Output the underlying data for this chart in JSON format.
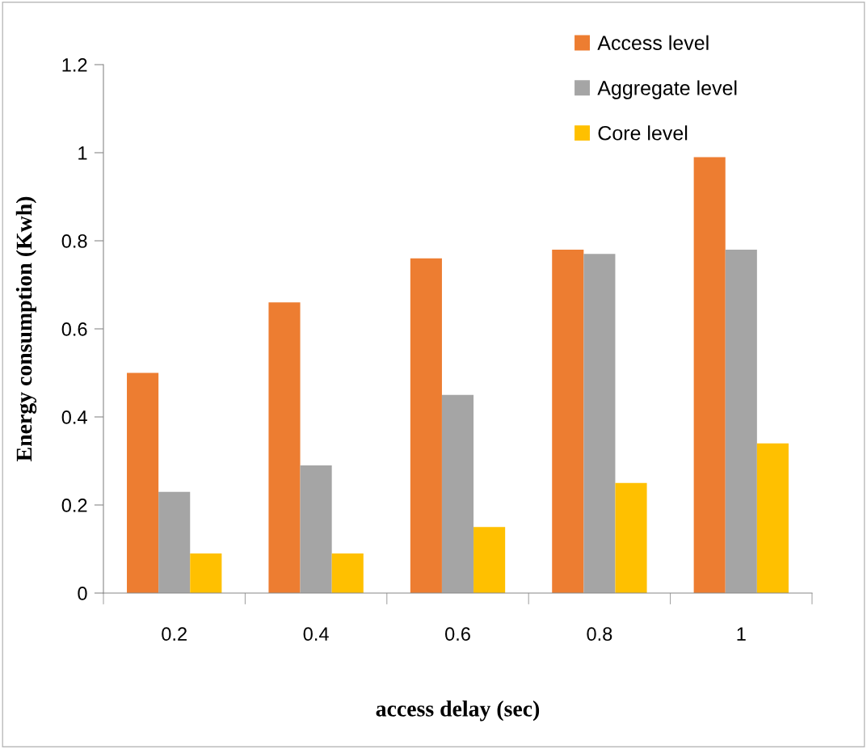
{
  "chart_data": {
    "type": "bar",
    "xlabel": "access delay (sec)",
    "ylabel": "Energy consumption (Kwh)",
    "categories": [
      "0.2",
      "0.4",
      "0.6",
      "0.8",
      "1"
    ],
    "series": [
      {
        "name": "Access level",
        "color": "#ed7d31",
        "values": [
          0.5,
          0.66,
          0.76,
          0.78,
          0.99
        ]
      },
      {
        "name": "Aggregate level",
        "color": "#a5a5a5",
        "values": [
          0.23,
          0.29,
          0.45,
          0.77,
          0.78
        ]
      },
      {
        "name": "Core level",
        "color": "#ffc000",
        "values": [
          0.09,
          0.09,
          0.15,
          0.25,
          0.34
        ]
      }
    ],
    "ylim": [
      0,
      1.2
    ],
    "yticks": [
      0,
      0.2,
      0.4,
      0.6,
      0.8,
      {
        "value": 1,
        "label": "1"
      },
      1.2
    ],
    "grid": false,
    "legend": "top right"
  }
}
